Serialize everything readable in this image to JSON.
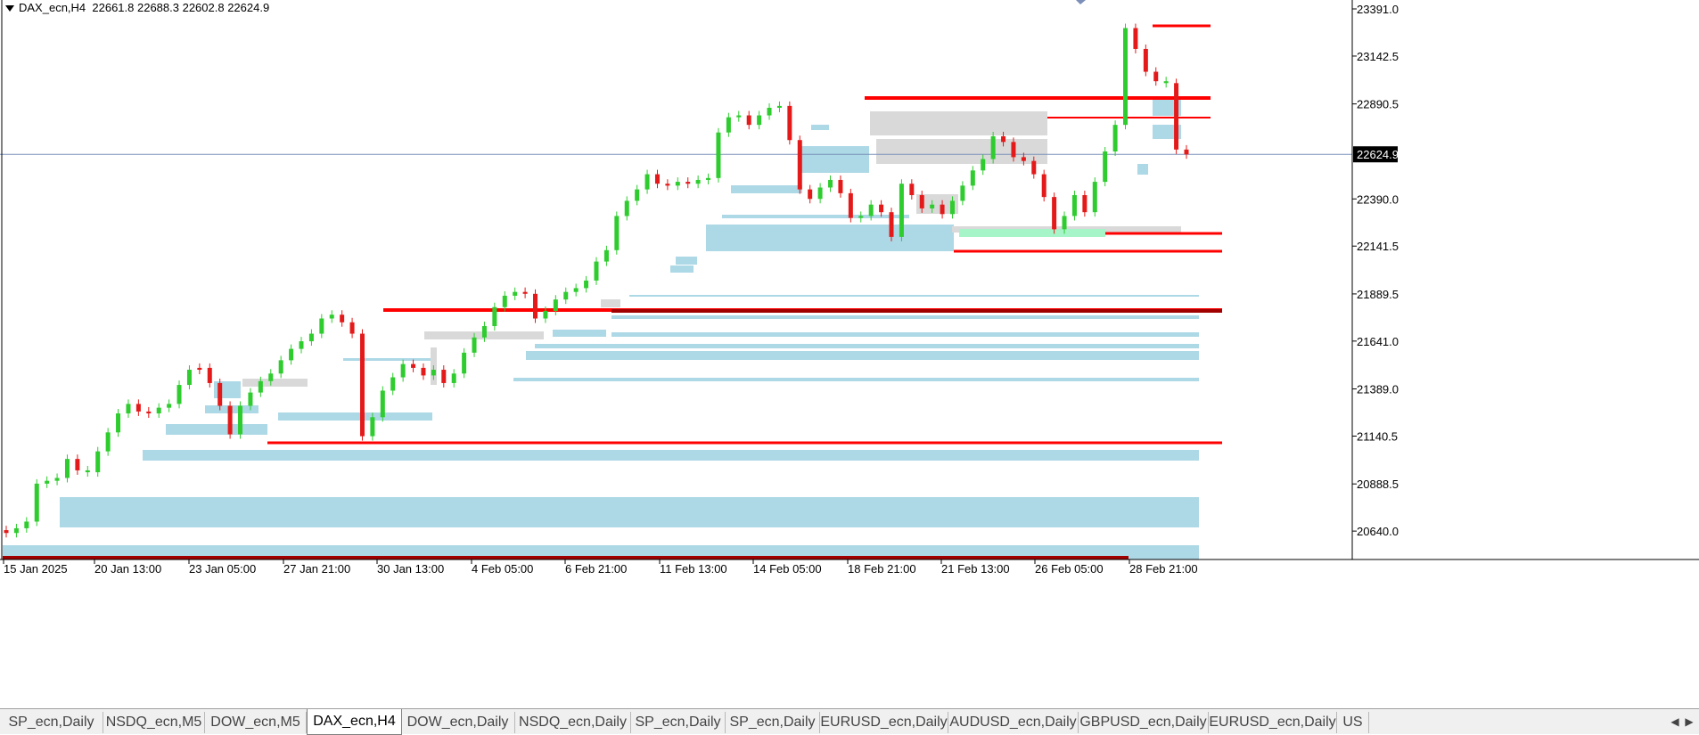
{
  "header": {
    "symbol": "DAX_ecn,H4",
    "ohlc": "22661.8 22688.3 22602.8 22624.9"
  },
  "price_axis": {
    "labels": [
      "23391.0",
      "23142.5",
      "22890.5",
      "22390.0",
      "22141.5",
      "21889.5",
      "21641.0",
      "21389.0",
      "21140.5",
      "20888.5",
      "20640.0"
    ],
    "current_price": 22624.9,
    "current_label": "22624.9"
  },
  "time_axis": {
    "labels": [
      "15 Jan 2025",
      "20 Jan 13:00",
      "23 Jan 05:00",
      "27 Jan 21:00",
      "30 Jan 13:00",
      "4 Feb 05:00",
      "6 Feb 21:00",
      "11 Feb 13:00",
      "14 Feb 05:00",
      "18 Feb 21:00",
      "21 Feb 13:00",
      "26 Feb 05:00",
      "28 Feb 21:00"
    ]
  },
  "colors": {
    "bull": "#2ecc2e",
    "bear": "#e41a1a",
    "zone_blue": "#add8e6",
    "zone_gray": "#d9d9d9",
    "zone_green": "#a6f5c8",
    "level_red": "#ff0000",
    "level_dark": "#a00000",
    "current_line": "#7b8fb8"
  },
  "chart_data": {
    "type": "candlestick",
    "series": [
      {
        "close": 20630,
        "color": "bear"
      },
      {
        "close": 20655,
        "color": "bull"
      },
      {
        "close": 20690,
        "color": "bull"
      },
      {
        "close": 20890,
        "color": "bull"
      },
      {
        "close": 20905,
        "color": "bull"
      },
      {
        "close": 20920,
        "color": "bull"
      },
      {
        "close": 21020,
        "color": "bull"
      },
      {
        "close": 20960,
        "color": "bear"
      },
      {
        "close": 20950,
        "color": "bull"
      },
      {
        "close": 21060,
        "color": "bull"
      },
      {
        "close": 21160,
        "color": "bull"
      },
      {
        "close": 21260,
        "color": "bull"
      },
      {
        "close": 21310,
        "color": "bull"
      },
      {
        "close": 21270,
        "color": "bear"
      },
      {
        "close": 21260,
        "color": "bear"
      },
      {
        "close": 21290,
        "color": "bull"
      },
      {
        "close": 21310,
        "color": "bull"
      },
      {
        "close": 21410,
        "color": "bull"
      },
      {
        "close": 21490,
        "color": "bull"
      },
      {
        "close": 21500,
        "color": "bear"
      },
      {
        "close": 21420,
        "color": "bear"
      },
      {
        "close": 21300,
        "color": "bear"
      },
      {
        "close": 21150,
        "color": "bear"
      },
      {
        "close": 21300,
        "color": "bull"
      },
      {
        "close": 21370,
        "color": "bull"
      },
      {
        "close": 21430,
        "color": "bull"
      },
      {
        "close": 21470,
        "color": "bull"
      },
      {
        "close": 21540,
        "color": "bull"
      },
      {
        "close": 21600,
        "color": "bull"
      },
      {
        "close": 21640,
        "color": "bull"
      },
      {
        "close": 21680,
        "color": "bull"
      },
      {
        "close": 21760,
        "color": "bull"
      },
      {
        "close": 21780,
        "color": "bull"
      },
      {
        "close": 21740,
        "color": "bear"
      },
      {
        "close": 21680,
        "color": "bear"
      },
      {
        "close": 21140,
        "color": "bear"
      },
      {
        "close": 21240,
        "color": "bull"
      },
      {
        "close": 21380,
        "color": "bull"
      },
      {
        "close": 21450,
        "color": "bull"
      },
      {
        "close": 21520,
        "color": "bull"
      },
      {
        "close": 21500,
        "color": "bear"
      },
      {
        "close": 21460,
        "color": "bear"
      },
      {
        "close": 21490,
        "color": "bull"
      },
      {
        "close": 21420,
        "color": "bear"
      },
      {
        "close": 21470,
        "color": "bull"
      },
      {
        "close": 21580,
        "color": "bull"
      },
      {
        "close": 21660,
        "color": "bull"
      },
      {
        "close": 21720,
        "color": "bull"
      },
      {
        "close": 21820,
        "color": "bull"
      },
      {
        "close": 21880,
        "color": "bull"
      },
      {
        "close": 21900,
        "color": "bull"
      },
      {
        "close": 21890,
        "color": "bear"
      },
      {
        "close": 21760,
        "color": "bear"
      },
      {
        "close": 21800,
        "color": "bull"
      },
      {
        "close": 21860,
        "color": "bull"
      },
      {
        "close": 21900,
        "color": "bull"
      },
      {
        "close": 21920,
        "color": "bull"
      },
      {
        "close": 21960,
        "color": "bull"
      },
      {
        "close": 22060,
        "color": "bull"
      },
      {
        "close": 22120,
        "color": "bull"
      },
      {
        "close": 22300,
        "color": "bull"
      },
      {
        "close": 22380,
        "color": "bull"
      },
      {
        "close": 22440,
        "color": "bull"
      },
      {
        "close": 22520,
        "color": "bull"
      },
      {
        "close": 22470,
        "color": "bear"
      },
      {
        "close": 22460,
        "color": "bear"
      },
      {
        "close": 22480,
        "color": "bull"
      },
      {
        "close": 22470,
        "color": "bear"
      },
      {
        "close": 22490,
        "color": "bull"
      },
      {
        "close": 22500,
        "color": "bull"
      },
      {
        "close": 22740,
        "color": "bull"
      },
      {
        "close": 22820,
        "color": "bull"
      },
      {
        "close": 22830,
        "color": "bull"
      },
      {
        "close": 22780,
        "color": "bear"
      },
      {
        "close": 22830,
        "color": "bull"
      },
      {
        "close": 22870,
        "color": "bull"
      },
      {
        "close": 22880,
        "color": "bull"
      },
      {
        "close": 22700,
        "color": "bear"
      },
      {
        "close": 22440,
        "color": "bear"
      },
      {
        "close": 22390,
        "color": "bear"
      },
      {
        "close": 22450,
        "color": "bull"
      },
      {
        "close": 22490,
        "color": "bull"
      },
      {
        "close": 22420,
        "color": "bear"
      },
      {
        "close": 22290,
        "color": "bear"
      },
      {
        "close": 22300,
        "color": "bull"
      },
      {
        "close": 22360,
        "color": "bull"
      },
      {
        "close": 22320,
        "color": "bear"
      },
      {
        "close": 22190,
        "color": "bear"
      },
      {
        "close": 22470,
        "color": "bull"
      },
      {
        "close": 22410,
        "color": "bear"
      },
      {
        "close": 22340,
        "color": "bear"
      },
      {
        "close": 22360,
        "color": "bull"
      },
      {
        "close": 22310,
        "color": "bear"
      },
      {
        "close": 22380,
        "color": "bull"
      },
      {
        "close": 22460,
        "color": "bull"
      },
      {
        "close": 22540,
        "color": "bull"
      },
      {
        "close": 22600,
        "color": "bull"
      },
      {
        "close": 22720,
        "color": "bull"
      },
      {
        "close": 22690,
        "color": "bear"
      },
      {
        "close": 22610,
        "color": "bear"
      },
      {
        "close": 22590,
        "color": "bear"
      },
      {
        "close": 22520,
        "color": "bear"
      },
      {
        "close": 22400,
        "color": "bear"
      },
      {
        "close": 22230,
        "color": "bear"
      },
      {
        "close": 22300,
        "color": "bull"
      },
      {
        "close": 22410,
        "color": "bull"
      },
      {
        "close": 22320,
        "color": "bear"
      },
      {
        "close": 22480,
        "color": "bull"
      },
      {
        "close": 22640,
        "color": "bull"
      },
      {
        "close": 22780,
        "color": "bull"
      },
      {
        "close": 23290,
        "color": "bull"
      },
      {
        "close": 23180,
        "color": "bear"
      },
      {
        "close": 23060,
        "color": "bear"
      },
      {
        "close": 23010,
        "color": "bear"
      },
      {
        "close": 23000,
        "color": "bull"
      },
      {
        "close": 22650,
        "color": "bear"
      },
      {
        "close": 22624.9,
        "color": "bear"
      }
    ]
  },
  "tabs": [
    {
      "label": "SP_ecn,Daily",
      "active": false
    },
    {
      "label": "NSDQ_ecn,M5",
      "active": false
    },
    {
      "label": "DOW_ecn,M5",
      "active": false
    },
    {
      "label": "DAX_ecn,H4",
      "active": true
    },
    {
      "label": "DOW_ecn,Daily",
      "active": false
    },
    {
      "label": "NSDQ_ecn,Daily",
      "active": false
    },
    {
      "label": "SP_ecn,Daily",
      "active": false
    },
    {
      "label": "SP_ecn,Daily",
      "active": false
    },
    {
      "label": "EURUSD_ecn,Daily",
      "active": false
    },
    {
      "label": "AUDUSD_ecn,Daily",
      "active": false
    },
    {
      "label": "GBPUSD_ecn,Daily",
      "active": false
    },
    {
      "label": "EURUSD_ecn,Daily",
      "active": false
    },
    {
      "label": "US",
      "active": false
    }
  ],
  "tab_scroll": {
    "left": "◀",
    "right": "▶"
  }
}
